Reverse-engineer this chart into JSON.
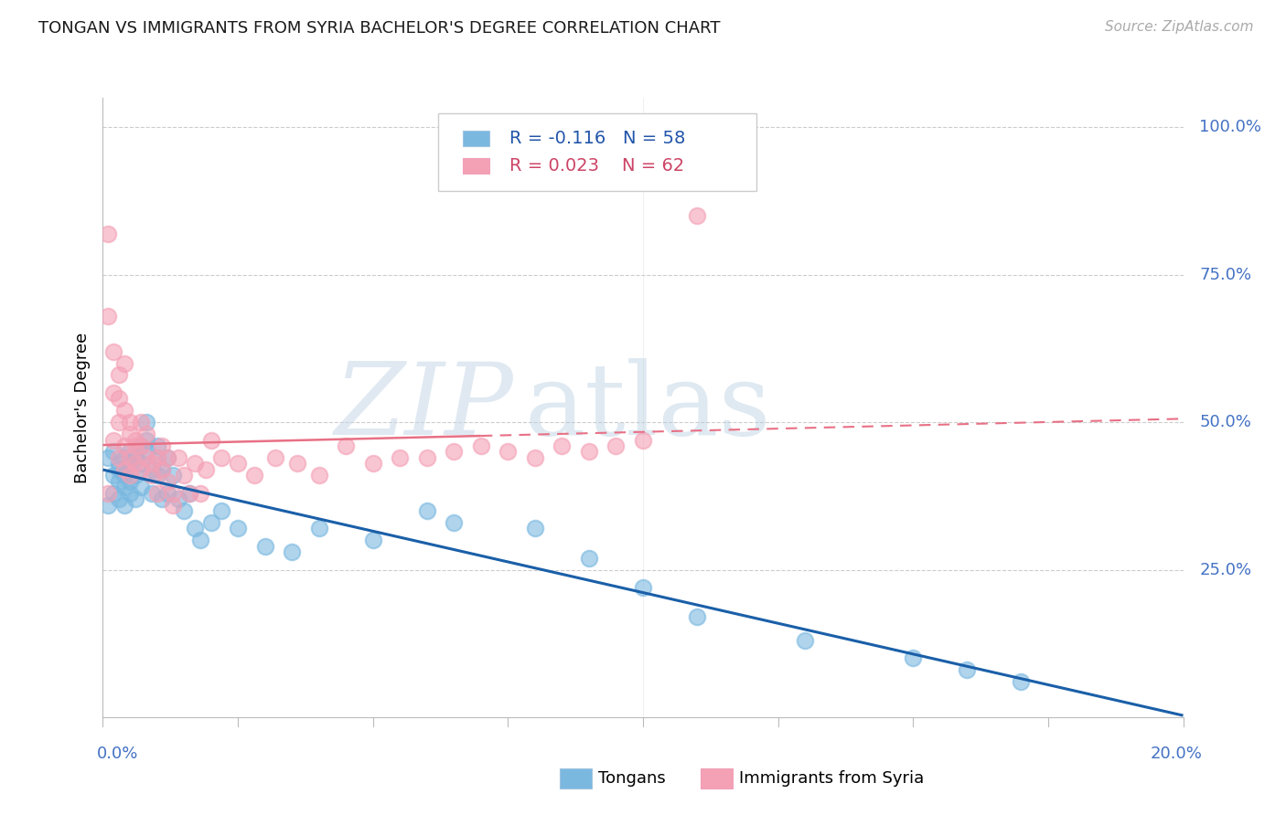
{
  "title": "TONGAN VS IMMIGRANTS FROM SYRIA BACHELOR'S DEGREE CORRELATION CHART",
  "source": "Source: ZipAtlas.com",
  "ylabel": "Bachelor's Degree",
  "color_tongan": "#7ab8e0",
  "color_syria": "#f4a0b5",
  "color_trendline_tongan": "#1a5fa8",
  "color_trendline_syria": "#e87085",
  "legend_r1": "R = -0.116",
  "legend_n1": "N = 58",
  "legend_r2": "R = 0.023",
  "legend_n2": "N = 62",
  "tongan_x": [
    0.001,
    0.001,
    0.002,
    0.002,
    0.002,
    0.003,
    0.003,
    0.003,
    0.003,
    0.004,
    0.004,
    0.004,
    0.004,
    0.005,
    0.005,
    0.005,
    0.005,
    0.006,
    0.006,
    0.006,
    0.007,
    0.007,
    0.007,
    0.008,
    0.008,
    0.008,
    0.009,
    0.009,
    0.01,
    0.01,
    0.01,
    0.011,
    0.011,
    0.012,
    0.012,
    0.013,
    0.014,
    0.015,
    0.016,
    0.017,
    0.018,
    0.02,
    0.022,
    0.025,
    0.03,
    0.035,
    0.04,
    0.05,
    0.06,
    0.065,
    0.08,
    0.09,
    0.1,
    0.11,
    0.13,
    0.15,
    0.16,
    0.17
  ],
  "tongan_y": [
    0.36,
    0.44,
    0.41,
    0.38,
    0.45,
    0.43,
    0.4,
    0.37,
    0.42,
    0.39,
    0.44,
    0.41,
    0.36,
    0.4,
    0.43,
    0.38,
    0.45,
    0.41,
    0.37,
    0.44,
    0.46,
    0.39,
    0.43,
    0.5,
    0.45,
    0.47,
    0.38,
    0.42,
    0.44,
    0.41,
    0.46,
    0.37,
    0.42,
    0.44,
    0.38,
    0.41,
    0.37,
    0.35,
    0.38,
    0.32,
    0.3,
    0.33,
    0.35,
    0.32,
    0.29,
    0.28,
    0.32,
    0.3,
    0.35,
    0.33,
    0.32,
    0.27,
    0.22,
    0.17,
    0.13,
    0.1,
    0.08,
    0.06
  ],
  "syria_x": [
    0.001,
    0.001,
    0.001,
    0.002,
    0.002,
    0.002,
    0.003,
    0.003,
    0.003,
    0.003,
    0.004,
    0.004,
    0.004,
    0.004,
    0.005,
    0.005,
    0.005,
    0.005,
    0.006,
    0.006,
    0.006,
    0.007,
    0.007,
    0.007,
    0.008,
    0.008,
    0.009,
    0.009,
    0.01,
    0.01,
    0.011,
    0.011,
    0.012,
    0.012,
    0.013,
    0.013,
    0.014,
    0.015,
    0.016,
    0.017,
    0.018,
    0.019,
    0.02,
    0.022,
    0.025,
    0.028,
    0.032,
    0.036,
    0.04,
    0.045,
    0.05,
    0.055,
    0.06,
    0.065,
    0.07,
    0.075,
    0.08,
    0.085,
    0.09,
    0.095,
    0.1,
    0.11
  ],
  "syria_y": [
    0.82,
    0.68,
    0.38,
    0.62,
    0.55,
    0.47,
    0.5,
    0.54,
    0.44,
    0.58,
    0.46,
    0.52,
    0.42,
    0.6,
    0.44,
    0.48,
    0.41,
    0.5,
    0.43,
    0.47,
    0.46,
    0.42,
    0.5,
    0.46,
    0.48,
    0.44,
    0.43,
    0.41,
    0.44,
    0.38,
    0.46,
    0.42,
    0.44,
    0.4,
    0.38,
    0.36,
    0.44,
    0.41,
    0.38,
    0.43,
    0.38,
    0.42,
    0.47,
    0.44,
    0.43,
    0.41,
    0.44,
    0.43,
    0.41,
    0.46,
    0.43,
    0.44,
    0.44,
    0.45,
    0.46,
    0.45,
    0.44,
    0.46,
    0.45,
    0.46,
    0.47,
    0.85
  ],
  "xmin": 0.0,
  "xmax": 0.2,
  "ymin": 0.0,
  "ymax": 1.05,
  "ytick_positions": [
    0.25,
    0.5,
    0.75,
    1.0
  ],
  "ytick_labels": [
    "25.0%",
    "50.0%",
    "75.0%",
    "100.0%"
  ],
  "background_color": "#ffffff",
  "grid_color": "#cccccc",
  "axis_color": "#bbbbbb",
  "trendline_switch_x": 0.07
}
